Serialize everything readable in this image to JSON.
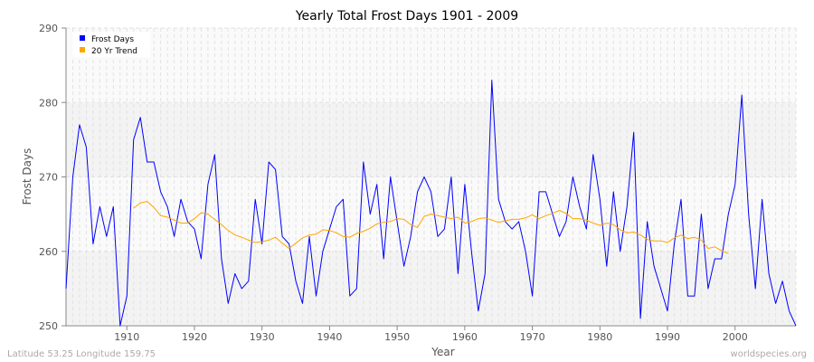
{
  "chart_data": {
    "type": "line",
    "title": "Yearly Total Frost Days 1901 - 2009",
    "xlabel": "Year",
    "ylabel": "Frost Days",
    "xlim": [
      1901,
      2009
    ],
    "ylim": [
      250,
      290
    ],
    "x_ticks": [
      1910,
      1920,
      1930,
      1940,
      1950,
      1960,
      1970,
      1980,
      1990,
      2000
    ],
    "y_ticks": [
      250,
      260,
      270,
      280,
      290
    ],
    "grid": true,
    "legend_placement": "top-left",
    "series": [
      {
        "name": "Frost Days",
        "color": "#0000ff",
        "start_year": 1901,
        "values": [
          255,
          270,
          277,
          274,
          261,
          266,
          262,
          266,
          250,
          254,
          275,
          278,
          272,
          272,
          268,
          266,
          262,
          267,
          264,
          263,
          259,
          269,
          273,
          259,
          253,
          257,
          255,
          256,
          267,
          261,
          272,
          271,
          262,
          261,
          256,
          253,
          262,
          254,
          260,
          263,
          266,
          267,
          254,
          255,
          272,
          265,
          269,
          259,
          270,
          264,
          258,
          262,
          268,
          270,
          268,
          262,
          263,
          270,
          257,
          269,
          260,
          252,
          257,
          283,
          267,
          264,
          263,
          264,
          260,
          254,
          268,
          268,
          265,
          262,
          264,
          270,
          266,
          263,
          273,
          267,
          258,
          268,
          260,
          266,
          276,
          251,
          264,
          258,
          255,
          252,
          261,
          267,
          254,
          254,
          265,
          255,
          259,
          259,
          265,
          269,
          281,
          265,
          255,
          267,
          257,
          253,
          256,
          252,
          250
        ]
      },
      {
        "name": "20 Yr Trend",
        "color": "#ffa500",
        "start_year": 1911,
        "values": [
          265.8,
          266.5,
          266.7,
          265.9,
          264.8,
          264.6,
          264.2,
          263.8,
          263.8,
          264.4,
          265.2,
          265.0,
          264.3,
          263.6,
          262.8,
          262.2,
          261.9,
          261.5,
          261.2,
          261.3,
          261.5,
          261.9,
          261.1,
          260.4,
          261.1,
          261.8,
          262.2,
          262.3,
          262.9,
          262.8,
          262.5,
          262.0,
          261.9,
          262.4,
          262.7,
          263.1,
          263.7,
          263.9,
          264.0,
          264.4,
          264.3,
          263.6,
          263.2,
          264.7,
          265.0,
          264.8,
          264.6,
          264.4,
          264.6,
          263.8,
          264.0,
          264.4,
          264.5,
          264.2,
          263.9,
          264.1,
          264.3,
          264.3,
          264.5,
          264.9,
          264.4,
          264.8,
          265.1,
          265.5,
          265.1,
          264.4,
          264.4,
          264.2,
          263.8,
          263.5,
          263.8,
          263.6,
          262.9,
          262.5,
          262.6,
          262.2,
          261.6,
          261.4,
          261.4,
          261.2,
          261.8,
          262.2,
          261.7,
          261.9,
          261.5,
          260.4,
          260.6,
          260.1,
          259.7
        ]
      }
    ]
  },
  "footer": {
    "location": "Latitude 53.25 Longitude 159.75",
    "source": "worldspecies.org"
  }
}
